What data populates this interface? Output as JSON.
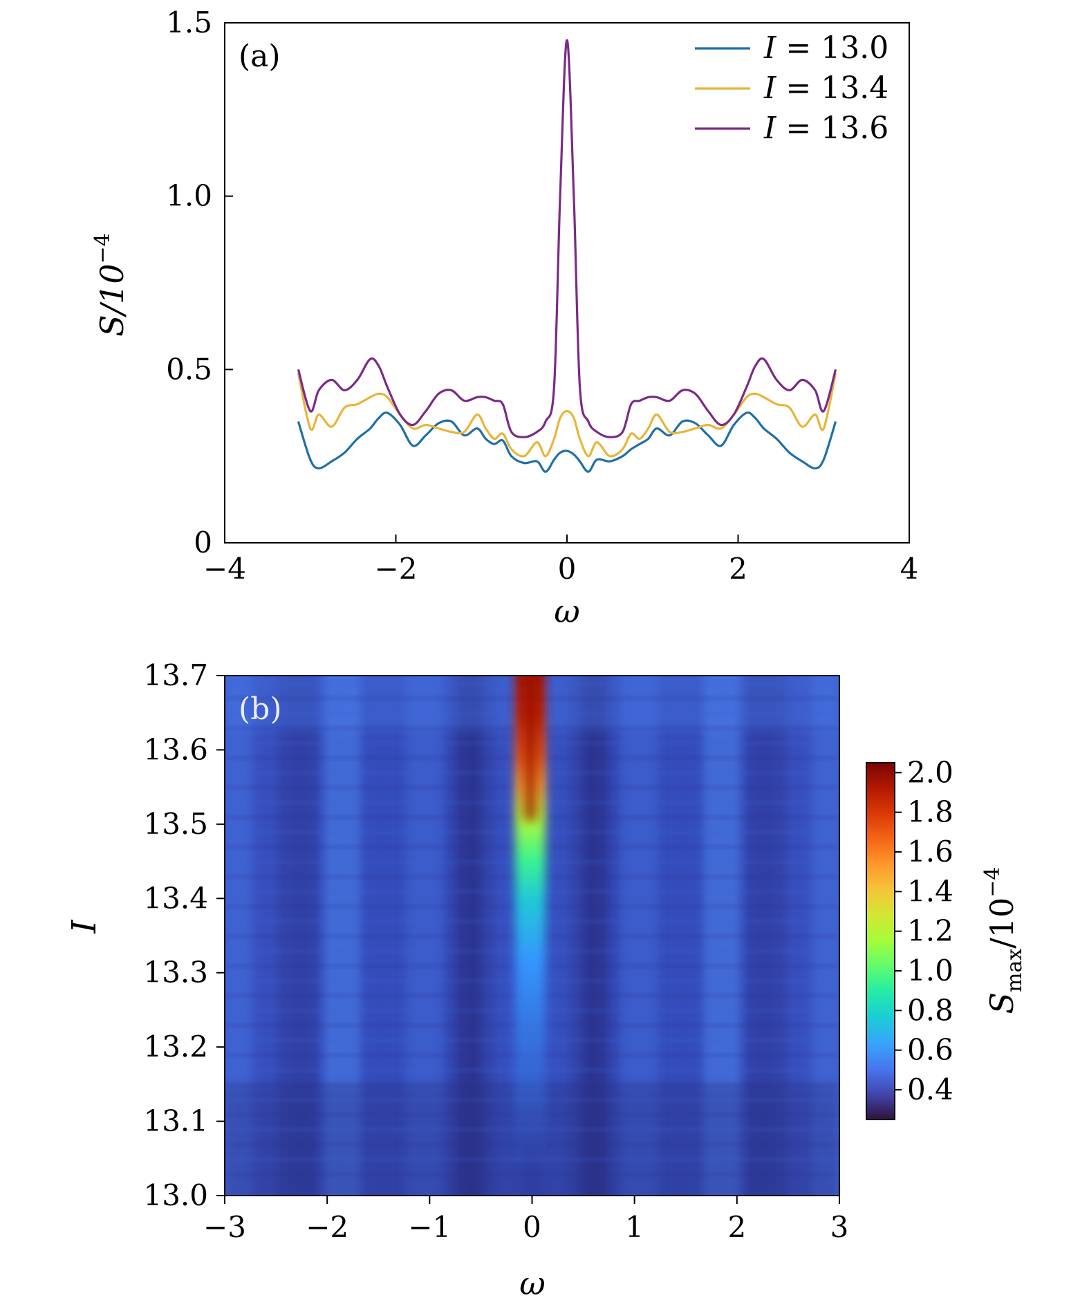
{
  "chart_data": [
    {
      "panel": "(a)",
      "type": "line",
      "xlabel": "ω",
      "ylabel": "S/10",
      "ylabel_exponent": "−4",
      "xlim": [
        -4,
        4
      ],
      "ylim": [
        0,
        1.5
      ],
      "xticks": [
        -4,
        -2,
        0,
        2,
        4
      ],
      "xtick_labels": [
        "−4",
        "−2",
        "0",
        "2",
        "4"
      ],
      "yticks": [
        0,
        0.5,
        1.0,
        1.5
      ],
      "ytick_labels": [
        "0",
        "0.5",
        "1.0",
        "1.5"
      ],
      "legend_position": "top-right",
      "x": [
        -3.14,
        -3.0,
        -2.9,
        -2.75,
        -2.6,
        -2.45,
        -2.3,
        -2.2,
        -2.1,
        -1.95,
        -1.8,
        -1.65,
        -1.5,
        -1.35,
        -1.2,
        -1.05,
        -0.95,
        -0.85,
        -0.75,
        -0.65,
        -0.5,
        -0.35,
        -0.25,
        -0.15,
        -0.08,
        0.0,
        0.08,
        0.15,
        0.25,
        0.35,
        0.5,
        0.65,
        0.75,
        0.85,
        0.95,
        1.05,
        1.2,
        1.35,
        1.5,
        1.65,
        1.8,
        1.95,
        2.1,
        2.2,
        2.3,
        2.45,
        2.6,
        2.75,
        2.9,
        3.0,
        3.14
      ],
      "series": [
        {
          "name": "I = 13.0",
          "legend_var": "I",
          "legend_value": "13.0",
          "color": "#1f6fa8",
          "values": [
            0.35,
            0.24,
            0.215,
            0.235,
            0.26,
            0.3,
            0.33,
            0.36,
            0.375,
            0.34,
            0.28,
            0.31,
            0.345,
            0.35,
            0.31,
            0.33,
            0.3,
            0.285,
            0.295,
            0.25,
            0.23,
            0.235,
            0.205,
            0.24,
            0.26,
            0.265,
            0.255,
            0.235,
            0.205,
            0.24,
            0.235,
            0.25,
            0.27,
            0.285,
            0.3,
            0.33,
            0.31,
            0.35,
            0.345,
            0.31,
            0.28,
            0.34,
            0.375,
            0.36,
            0.33,
            0.3,
            0.26,
            0.235,
            0.215,
            0.24,
            0.35
          ]
        },
        {
          "name": "I = 13.4",
          "legend_var": "I",
          "legend_value": "13.4",
          "color": "#e8b53a",
          "values": [
            0.49,
            0.33,
            0.37,
            0.335,
            0.39,
            0.4,
            0.42,
            0.43,
            0.42,
            0.37,
            0.33,
            0.34,
            0.33,
            0.32,
            0.32,
            0.37,
            0.33,
            0.3,
            0.315,
            0.27,
            0.25,
            0.29,
            0.25,
            0.3,
            0.36,
            0.38,
            0.36,
            0.3,
            0.25,
            0.29,
            0.25,
            0.27,
            0.315,
            0.3,
            0.33,
            0.37,
            0.32,
            0.32,
            0.33,
            0.34,
            0.33,
            0.37,
            0.42,
            0.43,
            0.42,
            0.4,
            0.39,
            0.335,
            0.37,
            0.33,
            0.49
          ]
        },
        {
          "name": "I = 13.6",
          "legend_var": "I",
          "legend_value": "13.6",
          "color": "#7b2a86",
          "values": [
            0.5,
            0.38,
            0.44,
            0.47,
            0.44,
            0.47,
            0.53,
            0.51,
            0.45,
            0.37,
            0.34,
            0.38,
            0.43,
            0.44,
            0.41,
            0.42,
            0.42,
            0.41,
            0.4,
            0.32,
            0.305,
            0.32,
            0.35,
            0.45,
            1.0,
            1.45,
            1.0,
            0.45,
            0.35,
            0.32,
            0.305,
            0.32,
            0.4,
            0.41,
            0.42,
            0.42,
            0.41,
            0.44,
            0.43,
            0.38,
            0.34,
            0.37,
            0.45,
            0.51,
            0.53,
            0.47,
            0.44,
            0.47,
            0.44,
            0.38,
            0.5
          ]
        }
      ]
    },
    {
      "panel": "(b)",
      "type": "heatmap",
      "xlabel": "ω",
      "ylabel": "I",
      "xlim": [
        -3,
        3
      ],
      "ylim": [
        13.0,
        13.7
      ],
      "xticks": [
        -3,
        -2,
        -1,
        0,
        1,
        2,
        3
      ],
      "xtick_labels": [
        "−3",
        "−2",
        "−1",
        "0",
        "1",
        "2",
        "3"
      ],
      "yticks": [
        13.0,
        13.1,
        13.2,
        13.3,
        13.4,
        13.5,
        13.6,
        13.7
      ],
      "ytick_labels": [
        "13.0",
        "13.1",
        "13.2",
        "13.3",
        "13.4",
        "13.5",
        "13.6",
        "13.7"
      ],
      "colorbar": {
        "label_main": "S",
        "label_sub": "max",
        "label_rest": "/10",
        "label_exponent": "−4",
        "vmin": 0.25,
        "vmax": 2.05,
        "ticks": [
          0.4,
          0.6,
          0.8,
          1.0,
          1.2,
          1.4,
          1.6,
          1.8,
          2.0
        ],
        "tick_labels": [
          "0.4",
          "0.6",
          "0.8",
          "1.0",
          "1.2",
          "1.4",
          "1.6",
          "1.8",
          "2.0"
        ]
      },
      "peak_description_values": {
        "center_omega": 0.0,
        "max_value_at_top": 2.0,
        "background_range": [
          0.25,
          0.55
        ]
      }
    }
  ]
}
